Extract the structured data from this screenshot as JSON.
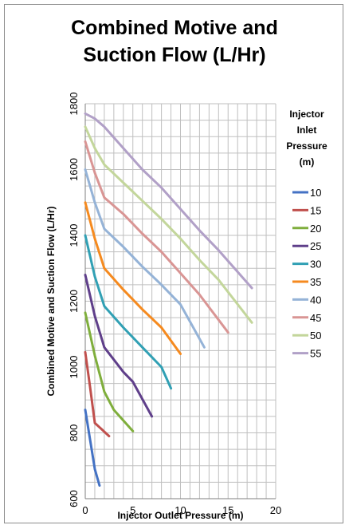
{
  "chart_data": {
    "type": "line",
    "title": "Combined Motive and Suction Flow (L/Hr)",
    "title_lines": [
      "Combined Motive and",
      "Suction Flow (L/Hr)"
    ],
    "xlabel": "Injector Outlet Pressure (m)",
    "ylabel": "Combined Motive and Suction Flow (L/Hr)",
    "xlim": [
      0,
      20
    ],
    "ylim": [
      600,
      1800
    ],
    "x_ticks": [
      0,
      5,
      10,
      15,
      20
    ],
    "y_ticks": [
      600,
      800,
      1000,
      1200,
      1400,
      1600,
      1800
    ],
    "grid": true,
    "legend": {
      "title_lines": [
        "Injector",
        "Inlet",
        "Pressure",
        "(m)"
      ],
      "position": "right"
    },
    "series": [
      {
        "name": "10",
        "color": "#4472C4",
        "points": [
          [
            0,
            870
          ],
          [
            0.5,
            780
          ],
          [
            1,
            690
          ],
          [
            1.5,
            640
          ]
        ]
      },
      {
        "name": "15",
        "color": "#C0504D",
        "points": [
          [
            0,
            1045
          ],
          [
            0.5,
            940
          ],
          [
            1,
            830
          ],
          [
            2.5,
            790
          ]
        ]
      },
      {
        "name": "20",
        "color": "#7FAE3C",
        "points": [
          [
            0,
            1165
          ],
          [
            1,
            1035
          ],
          [
            2,
            925
          ],
          [
            3,
            870
          ],
          [
            5,
            805
          ]
        ]
      },
      {
        "name": "25",
        "color": "#5F3F8A",
        "points": [
          [
            0,
            1280
          ],
          [
            1,
            1155
          ],
          [
            2,
            1060
          ],
          [
            4,
            985
          ],
          [
            5,
            955
          ],
          [
            7,
            850
          ]
        ]
      },
      {
        "name": "30",
        "color": "#31A0B4",
        "points": [
          [
            0,
            1400
          ],
          [
            1,
            1275
          ],
          [
            2,
            1185
          ],
          [
            4,
            1120
          ],
          [
            6,
            1060
          ],
          [
            8,
            1000
          ],
          [
            9,
            935
          ]
        ]
      },
      {
        "name": "35",
        "color": "#F58A1F",
        "points": [
          [
            0,
            1500
          ],
          [
            1,
            1390
          ],
          [
            2,
            1300
          ],
          [
            4,
            1235
          ],
          [
            6,
            1175
          ],
          [
            8,
            1120
          ],
          [
            10,
            1040
          ]
        ]
      },
      {
        "name": "40",
        "color": "#95B3D7",
        "points": [
          [
            0,
            1600
          ],
          [
            1,
            1500
          ],
          [
            2,
            1420
          ],
          [
            4,
            1365
          ],
          [
            6,
            1305
          ],
          [
            8,
            1250
          ],
          [
            10,
            1190
          ],
          [
            12.5,
            1060
          ]
        ]
      },
      {
        "name": "45",
        "color": "#D99594",
        "points": [
          [
            0,
            1685
          ],
          [
            1,
            1590
          ],
          [
            2,
            1515
          ],
          [
            4,
            1465
          ],
          [
            6,
            1405
          ],
          [
            8,
            1350
          ],
          [
            10,
            1285
          ],
          [
            12,
            1220
          ],
          [
            15,
            1105
          ]
        ]
      },
      {
        "name": "50",
        "color": "#C3D69B",
        "points": [
          [
            0,
            1730
          ],
          [
            1,
            1665
          ],
          [
            2,
            1615
          ],
          [
            4,
            1560
          ],
          [
            6,
            1505
          ],
          [
            8,
            1450
          ],
          [
            10,
            1390
          ],
          [
            12,
            1325
          ],
          [
            14,
            1265
          ],
          [
            17.5,
            1135
          ]
        ]
      },
      {
        "name": "55",
        "color": "#B1A0C7",
        "points": [
          [
            0,
            1770
          ],
          [
            1,
            1755
          ],
          [
            2,
            1730
          ],
          [
            4,
            1665
          ],
          [
            6,
            1600
          ],
          [
            8,
            1545
          ],
          [
            10,
            1480
          ],
          [
            12,
            1415
          ],
          [
            14,
            1355
          ],
          [
            17.5,
            1240
          ]
        ]
      }
    ]
  }
}
